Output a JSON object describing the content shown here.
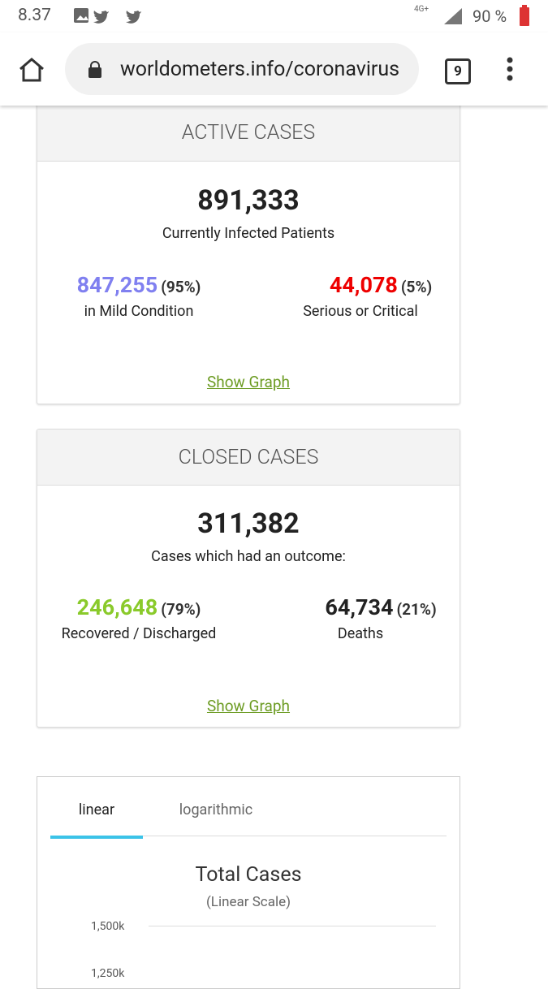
{
  "status_bar": {
    "time": "8.37",
    "network": "4G+",
    "battery": "90 %"
  },
  "browser": {
    "url": "worldometers.info/coronavirus",
    "tab_count": "9"
  },
  "active_cases": {
    "header": "ACTIVE CASES",
    "total": "891,333",
    "total_label": "Currently Infected Patients",
    "mild": {
      "value": "847,255",
      "percent": "(95%)",
      "label": "in Mild Condition"
    },
    "serious": {
      "value": "44,078",
      "percent": "(5%)",
      "label": "Serious or Critical"
    },
    "link": "Show Graph"
  },
  "closed_cases": {
    "header": "CLOSED CASES",
    "total": "311,382",
    "total_label": "Cases which had an outcome:",
    "recovered": {
      "value": "246,648",
      "percent": "(79%)",
      "label": "Recovered / Discharged"
    },
    "deaths": {
      "value": "64,734",
      "percent": "(21%)",
      "label": "Deaths"
    },
    "link": "Show Graph"
  },
  "chart_panel": {
    "tabs": [
      "linear",
      "logarithmic"
    ],
    "title": "Total Cases",
    "subtitle": "(Linear Scale)",
    "y_ticks": [
      "1,500k",
      "1,250k"
    ]
  }
}
